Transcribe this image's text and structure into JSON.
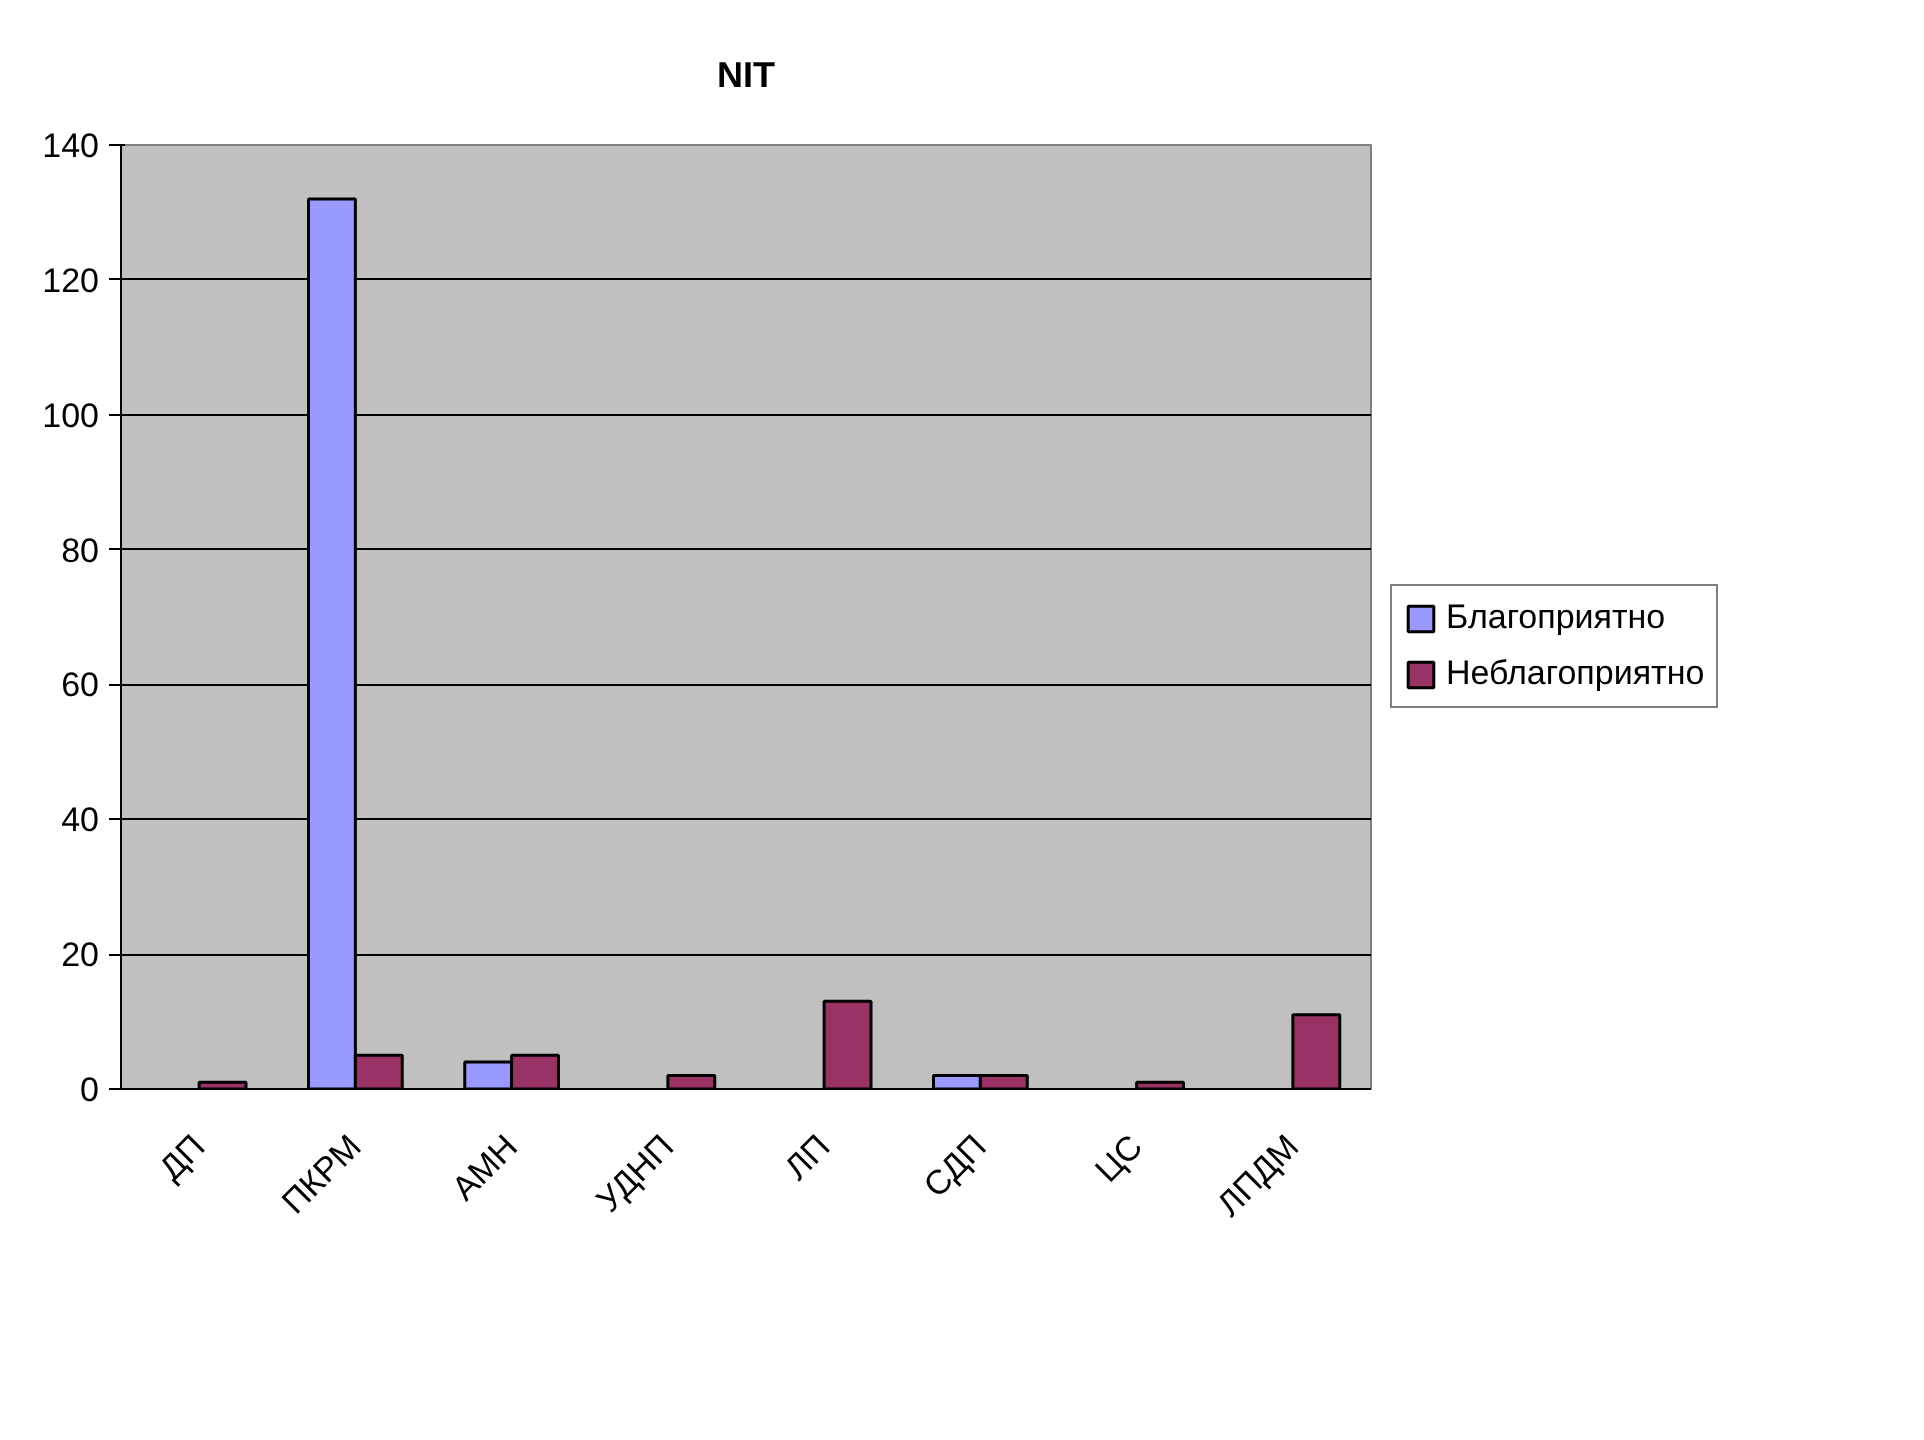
{
  "chart_data": {
    "type": "bar",
    "title": "NIT",
    "categories": [
      "ДП",
      "ПКРМ",
      "АМН",
      "УДНП",
      "ЛП",
      "СДП",
      "ЦС",
      "ЛПДМ"
    ],
    "series": [
      {
        "name": "Благоприятно",
        "color": "#9999ff",
        "values": [
          null,
          132,
          4,
          null,
          null,
          2,
          null,
          null
        ]
      },
      {
        "name": "Неблагоприятно",
        "color": "#993366",
        "values": [
          1,
          5,
          5,
          2,
          13,
          2,
          1,
          11
        ]
      }
    ],
    "ylim": [
      0,
      140
    ],
    "yticks": [
      0,
      20,
      40,
      60,
      80,
      100,
      120,
      140
    ],
    "grid": "y",
    "legend": "right"
  }
}
